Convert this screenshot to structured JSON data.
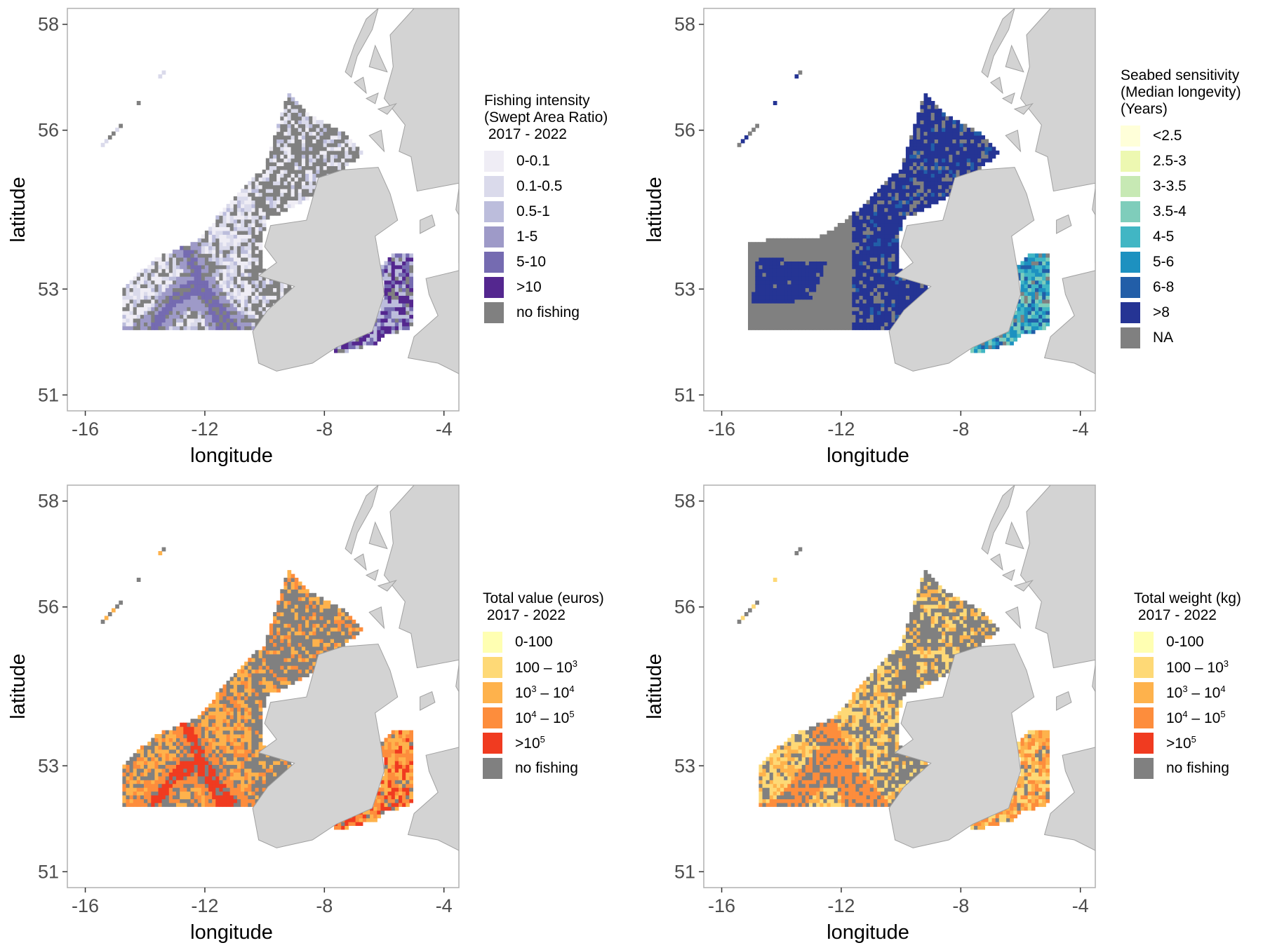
{
  "map_defaults": {
    "x_axis_title": "longitude",
    "y_axis_title": "latitude",
    "x_ticks": [
      -16,
      -12,
      -8,
      -4
    ],
    "y_ticks": [
      51,
      53,
      56,
      58
    ],
    "xlim": [
      -16.6,
      -3.5
    ],
    "ylim": [
      50.7,
      58.3
    ],
    "colors": {
      "land": "#d3d3d3",
      "no_data": "#808080",
      "panel_border": "#b0b0b0"
    }
  },
  "panels": [
    {
      "legend_title": "Fishing intensity\n(Swept Area Ratio)\n 2017 - 2022",
      "variable": "swept-area-ratio",
      "legend": [
        {
          "label": "0-0.1",
          "color": "#efedf5"
        },
        {
          "label": "0.1-0.5",
          "color": "#dadaeb"
        },
        {
          "label": "0.5-1",
          "color": "#bcbddc"
        },
        {
          "label": "1-5",
          "color": "#9e9ac8"
        },
        {
          "label": "5-10",
          "color": "#756bb1"
        },
        {
          "label": ">10",
          "color": "#54278f"
        },
        {
          "label": "no fishing",
          "color": "#808080"
        }
      ]
    },
    {
      "legend_title": "Seabed sensitivity\n(Median longevity)\n(Years)",
      "variable": "median-longevity",
      "legend": [
        {
          "label": "<2.5",
          "color": "#ffffd9"
        },
        {
          "label": "2.5-3",
          "color": "#edf8b1"
        },
        {
          "label": "3-3.5",
          "color": "#c7e9b4"
        },
        {
          "label": "3.5-4",
          "color": "#7fcdbb"
        },
        {
          "label": "4-5",
          "color": "#41b6c4"
        },
        {
          "label": "5-6",
          "color": "#1d91c0"
        },
        {
          "label": "6-8",
          "color": "#225ea8"
        },
        {
          "label": ">8",
          "color": "#253494"
        },
        {
          "label": "NA",
          "color": "#808080"
        }
      ]
    },
    {
      "legend_title": "Total value (euros)\n 2017 - 2022",
      "variable": "total-value",
      "legend": [
        {
          "label": "0-100",
          "color": "#ffffb2"
        },
        {
          "label": "100 – 10",
          "sup": "3",
          "color": "#fed976"
        },
        {
          "label": "10",
          "sup": "3",
          "label_tail": " – 10",
          "sup2": "4",
          "color": "#feb24c"
        },
        {
          "label": "10",
          "sup": "4",
          "label_tail": " – 10",
          "sup2": "5",
          "color": "#fd8d3c"
        },
        {
          "label": ">10",
          "sup": "5",
          "color": "#f03b20"
        },
        {
          "label": "no fishing",
          "color": "#808080"
        }
      ]
    },
    {
      "legend_title": "Total weight (kg)\n 2017 - 2022",
      "variable": "total-weight",
      "legend": [
        {
          "label": "0-100",
          "color": "#ffffb2"
        },
        {
          "label": "100 – 10",
          "sup": "3",
          "color": "#fed976"
        },
        {
          "label": "10",
          "sup": "3",
          "label_tail": " – 10",
          "sup2": "4",
          "color": "#feb24c"
        },
        {
          "label": "10",
          "sup": "4",
          "label_tail": " – 10",
          "sup2": "5",
          "color": "#fd8d3c"
        },
        {
          "label": ">10",
          "sup": "5",
          "color": "#f03b20"
        },
        {
          "label": "no fishing",
          "color": "#808080"
        }
      ]
    }
  ]
}
